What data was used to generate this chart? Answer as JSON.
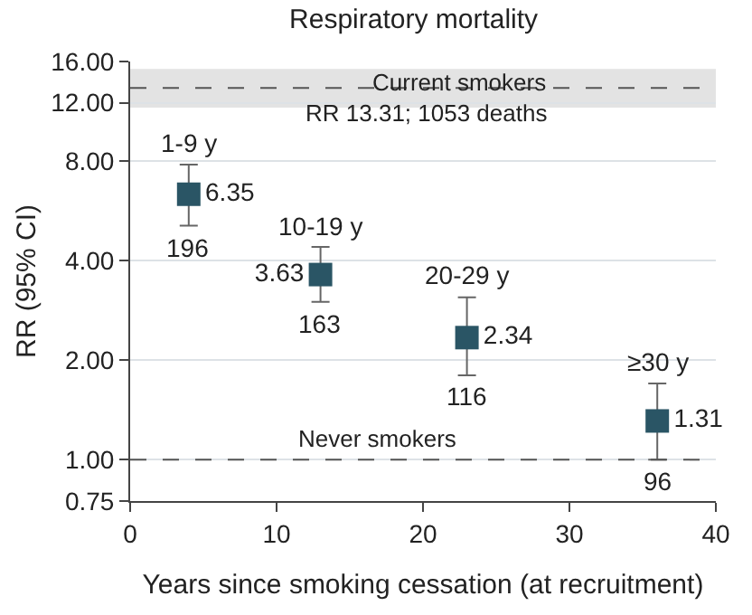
{
  "chart_data": {
    "type": "scatter",
    "title": "Respiratory mortality",
    "xlabel": "Years since smoking cessation (at recruitment)",
    "ylabel": "RR (95% CI)",
    "x": [
      4,
      13,
      23,
      36
    ],
    "series": [
      {
        "color": "#2a5565",
        "values": [
          6.35,
          3.63,
          2.34,
          1.31
        ],
        "errors": [
          [
            5.1,
            7.8
          ],
          [
            3.0,
            4.4
          ],
          [
            1.8,
            3.1
          ],
          [
            1.0,
            1.7
          ]
        ]
      }
    ],
    "data_labels": true,
    "marker": "square",
    "log": "y",
    "grid": "y",
    "xlim": [
      0,
      40
    ],
    "xticks": [
      0,
      10,
      20,
      30,
      40
    ],
    "ylim": [
      0.75,
      16
    ],
    "yticks": [
      {
        "value": 0.75,
        "label": "0.75"
      },
      {
        "value": 1,
        "label": "1.00"
      },
      {
        "value": 2,
        "label": "2.00"
      },
      {
        "value": 4,
        "label": "4.00"
      },
      {
        "value": 8,
        "label": "8.00"
      },
      {
        "value": 12,
        "label": "12.00"
      },
      {
        "value": 16,
        "label": "16.00"
      }
    ],
    "ref_lines": [
      {
        "axis": "y",
        "value": 1,
        "label": "Never smokers",
        "color": "#555555",
        "line_style": "dashed"
      },
      {
        "axis": "y",
        "value": 13.31,
        "label": "RR 13.31; 1053 deaths",
        "color": "#555555",
        "line_style": "dashed"
      }
    ],
    "bands": [
      {
        "axis": "y",
        "from": 11.6,
        "to": 15.2,
        "label": "Current smokers",
        "color": "#e3e3e3"
      }
    ],
    "annotations": [
      {
        "text": "1-9 y",
        "x": 4,
        "y": 7.8
      },
      {
        "text": "196",
        "x": 4,
        "y": 5.1
      },
      {
        "text": "10-19 y",
        "x": 13,
        "y": 4.4
      },
      {
        "text": "163",
        "x": 13,
        "y": 3.0
      },
      {
        "text": "20-29 y",
        "x": 23,
        "y": 3.1
      },
      {
        "text": "116",
        "x": 23,
        "y": 1.8
      },
      {
        "text": "≥30 y",
        "x": 36,
        "y": 1.7
      },
      {
        "text": "96",
        "x": 36,
        "y": 1.0
      }
    ]
  }
}
